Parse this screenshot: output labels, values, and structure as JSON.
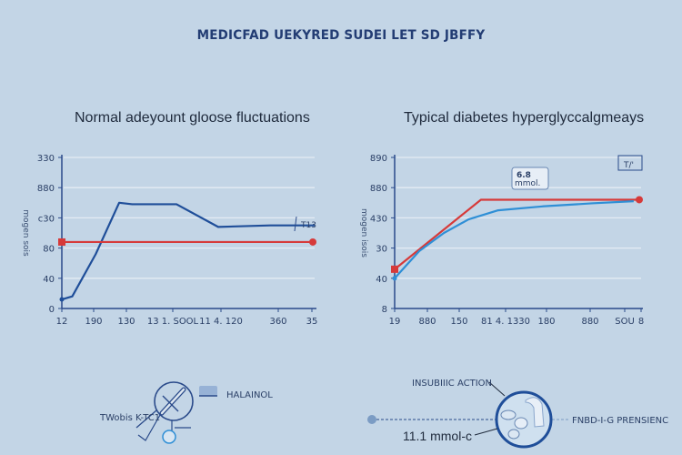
{
  "header": {
    "title": "MEDICFAD UEKYRED  SUDEI LET SD JBFFY"
  },
  "colors": {
    "background": "#c3d5e6",
    "axis": "#2a4a8a",
    "grid": "#e4ecf4",
    "glucose_dark": "#1f4e99",
    "glucose_light": "#2f8fd6",
    "threshold_red": "#d63a3a",
    "title": "#233d74"
  },
  "chart_data": [
    {
      "type": "line",
      "title": "Normal adeyount gloose fluctuations",
      "xlabel": "",
      "ylabel": "mogen sois",
      "x_ticks": [
        "12",
        "190",
        "130",
        "13 1. SOOL",
        "11 4. 120",
        "360",
        "35"
      ],
      "y_ticks": [
        "0",
        "40",
        "80",
        "c30",
        "880",
        "330"
      ],
      "ylim": [
        0,
        5
      ],
      "grid": true,
      "series": [
        {
          "name": "glucose",
          "color": "#1f4e99",
          "x": [
            0,
            0.4,
            1.3,
            2.2,
            2.7,
            4.4,
            6.0,
            8.0,
            9.7
          ],
          "y": [
            0.3,
            0.4,
            1.8,
            3.5,
            3.45,
            3.45,
            2.7,
            2.75,
            2.75
          ]
        },
        {
          "name": "threshold",
          "color": "#d63a3a",
          "x": [
            0,
            9.7
          ],
          "y": [
            2.2,
            2.2
          ]
        }
      ],
      "annotations": [
        {
          "text": "T13",
          "at": "right end of threshold"
        }
      ]
    },
    {
      "type": "line",
      "title": "Typical diabetes hyperglyccalgmeays",
      "xlabel": "",
      "ylabel": "mogen isois",
      "x_ticks": [
        "19",
        "880",
        "150",
        "81 4. 1330",
        "180",
        "880",
        "SOU",
        "8"
      ],
      "y_ticks": [
        "8",
        "40",
        "30",
        "430",
        "880",
        "890"
      ],
      "ylim": [
        0,
        5
      ],
      "grid": true,
      "series": [
        {
          "name": "threshold",
          "color": "#d63a3a",
          "x": [
            0,
            3.5,
            10
          ],
          "y": [
            1.3,
            3.6,
            3.6
          ]
        },
        {
          "name": "glucose",
          "color": "#2f8fd6",
          "x": [
            0,
            1.0,
            2.0,
            3.0,
            4.2,
            6.0,
            8.0,
            9.7
          ],
          "y": [
            1.0,
            1.9,
            2.5,
            2.95,
            3.25,
            3.38,
            3.48,
            3.55
          ]
        }
      ],
      "annotations": [
        {
          "text": "6.8 mmol mmol.",
          "at": "callout near plateau"
        },
        {
          "text": "T/'",
          "at": "right end"
        }
      ]
    }
  ],
  "diagrams": {
    "left": {
      "label_right": "HALAINOL",
      "label_left": "TWobis K-TC1"
    },
    "right": {
      "label_top": "INSUBIIIC ACTION",
      "label_bottom": "11.1 mmol-c",
      "label_right": "FNBD-I-G PRENSIENC"
    }
  }
}
